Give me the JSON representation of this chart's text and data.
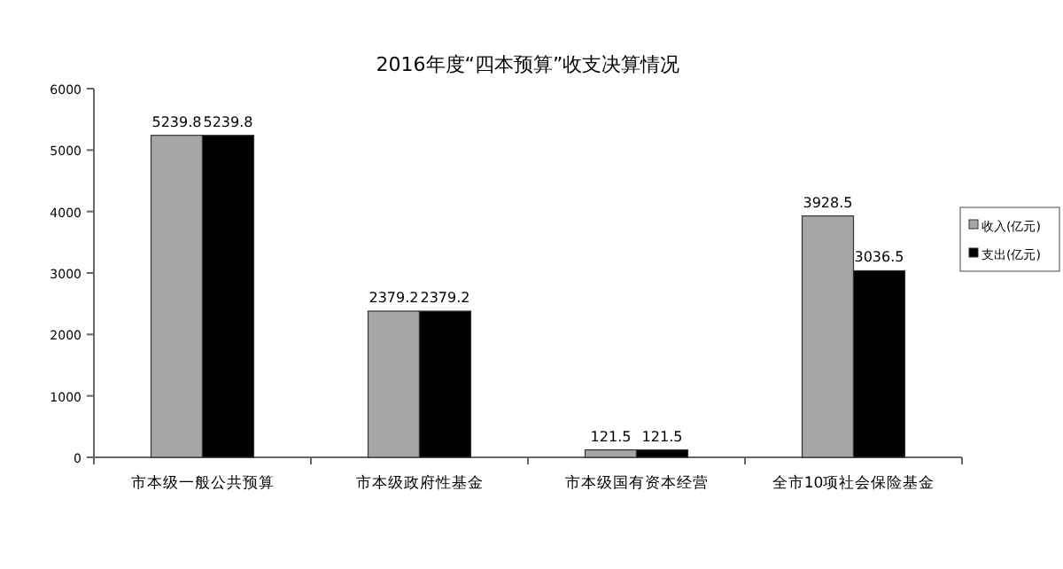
{
  "chart_data": {
    "type": "bar",
    "title": "2016年度“四本预算”收支决算情况",
    "categories": [
      "市本级一般公共预算",
      "市本级政府性基金",
      "市本级国有资本经营",
      "全市10项社会保险基金"
    ],
    "series": [
      {
        "name": "收入(亿元)",
        "color": "#a6a6a6",
        "values": [
          5239.8,
          2379.2,
          121.5,
          3928.5
        ]
      },
      {
        "name": "支出(亿元)",
        "color": "#000000",
        "values": [
          5239.8,
          2379.2,
          121.5,
          3036.5
        ]
      }
    ],
    "ylim": [
      0,
      6000
    ],
    "yticks": [
      0,
      1000,
      2000,
      3000,
      4000,
      5000,
      6000
    ],
    "data_labels": true,
    "legend": "right",
    "grid": false
  }
}
